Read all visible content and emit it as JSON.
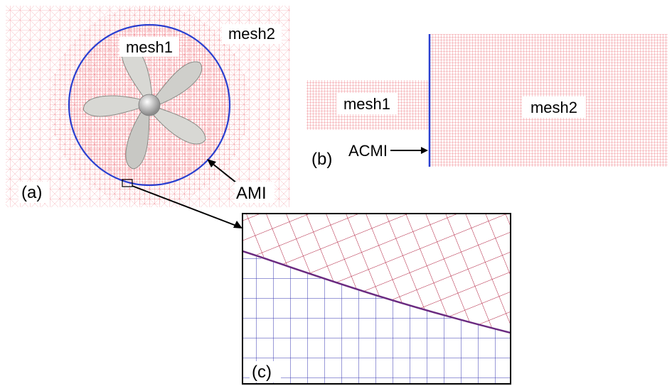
{
  "panel_a": {
    "label": "(a)",
    "mesh1_label": "mesh1",
    "mesh2_label": "mesh2",
    "interface_label": "AMI",
    "blade_count": 5
  },
  "panel_b": {
    "label": "(b)",
    "mesh1_label": "mesh1",
    "mesh2_label": "mesh2",
    "interface_label": "ACMI"
  },
  "panel_c": {
    "label": "(c)"
  },
  "colors": {
    "mesh": "#e8404a",
    "interface": "#2a3fd0",
    "inner_mesh_dark": "#a01830",
    "outer_mesh_blue": "#2c2ca8"
  }
}
